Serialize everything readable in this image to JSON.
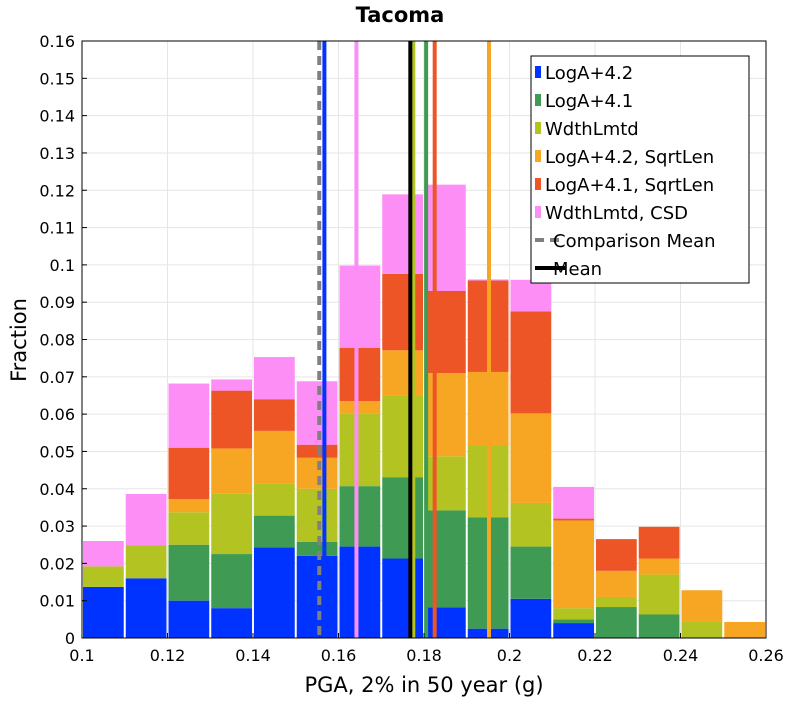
{
  "chart_data": {
    "type": "bar",
    "stacked": true,
    "title": "Tacoma",
    "xlabel": "PGA, 2% in 50 year (g)",
    "ylabel": "Fraction",
    "xlim": [
      0.1,
      0.26
    ],
    "ylim": [
      0,
      0.16
    ],
    "xticks": [
      "0.1",
      "0.12",
      "0.14",
      "0.16",
      "0.18",
      "0.2",
      "0.22",
      "0.24",
      "0.26"
    ],
    "yticks": [
      "0",
      "0.01",
      "0.02",
      "0.03",
      "0.04",
      "0.05",
      "0.06",
      "0.07",
      "0.08",
      "0.09",
      "0.1",
      "0.11",
      "0.12",
      "0.13",
      "0.14",
      "0.15",
      "0.16"
    ],
    "grid": true,
    "legend_position": "top-right",
    "bin_width": 0.01,
    "bin_starts": [
      0.1,
      0.11,
      0.12,
      0.13,
      0.14,
      0.15,
      0.16,
      0.17,
      0.18,
      0.19,
      0.2,
      0.21,
      0.22,
      0.23,
      0.24,
      0.25
    ],
    "series": [
      {
        "name": "LogA+4.2",
        "color": "#0033ff",
        "values": [
          0.0137,
          0.016,
          0.01,
          0.008,
          0.0243,
          0.022,
          0.0245,
          0.0213,
          0.0082,
          0.0025,
          0.0105,
          0.004,
          0,
          0,
          0,
          0
        ]
      },
      {
        "name": "LogA+4.1",
        "color": "#3f9a53",
        "values": [
          0,
          0,
          0.015,
          0.0145,
          0.0085,
          0.0038,
          0.0162,
          0.0218,
          0.026,
          0.0298,
          0.014,
          0.001,
          0.0083,
          0.0063,
          0,
          0
        ]
      },
      {
        "name": "WdthLmtd",
        "color": "#b2c322",
        "values": [
          0.0055,
          0.0088,
          0.0087,
          0.0163,
          0.0087,
          0.0142,
          0.0195,
          0.022,
          0.0145,
          0.0193,
          0.0117,
          0.003,
          0.0027,
          0.0107,
          0.0043,
          0
        ]
      },
      {
        "name": "LogA+4.2, SqrtLen",
        "color": "#f6a623",
        "values": [
          0,
          0,
          0.0035,
          0.012,
          0.014,
          0.0083,
          0.0033,
          0.012,
          0.0223,
          0.0197,
          0.024,
          0.0235,
          0.007,
          0.0043,
          0.0085,
          0.0043
        ]
      },
      {
        "name": "LogA+4.1, SqrtLen",
        "color": "#ee5526",
        "values": [
          0,
          0,
          0.0138,
          0.0155,
          0.0085,
          0.0035,
          0.0143,
          0.0205,
          0.022,
          0.0245,
          0.0273,
          0.0005,
          0.0085,
          0.0085,
          0,
          0
        ]
      },
      {
        "name": "WdthLmtd, CSD",
        "color": "#fc8ef5",
        "values": [
          0.0068,
          0.0138,
          0.0172,
          0.003,
          0.0113,
          0.017,
          0.022,
          0.0213,
          0.0285,
          0.0003,
          0.0085,
          0.0085,
          0,
          0,
          0,
          0
        ]
      }
    ],
    "vertical_lines": [
      {
        "name": "LogA+4.2",
        "x": 0.1567,
        "color": "#0033ff",
        "style": "solid",
        "legend": false
      },
      {
        "name": "LogA+4.1",
        "x": 0.1805,
        "color": "#3f9a53",
        "style": "solid",
        "legend": false
      },
      {
        "name": "WdthLmtd",
        "x": 0.1775,
        "color": "#b2c322",
        "style": "solid",
        "legend": false
      },
      {
        "name": "LogA+4.2, SqrtLen",
        "x": 0.1952,
        "color": "#f6a623",
        "style": "solid",
        "legend": false
      },
      {
        "name": "LogA+4.1, SqrtLen",
        "x": 0.1825,
        "color": "#ee5526",
        "style": "solid",
        "legend": false
      },
      {
        "name": "WdthLmtd, CSD",
        "x": 0.1642,
        "color": "#fc8ef5",
        "style": "solid",
        "legend": false
      },
      {
        "name": "Comparison Mean",
        "x": 0.1555,
        "color": "#808080",
        "style": "dashed",
        "legend": true
      },
      {
        "name": "Mean",
        "x": 0.1768,
        "color": "#000000",
        "style": "solid",
        "legend": true
      }
    ]
  }
}
